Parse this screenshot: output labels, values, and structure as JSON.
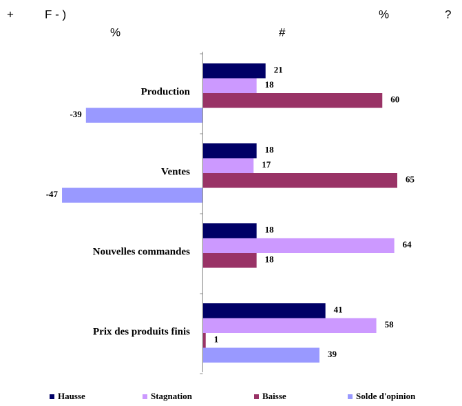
{
  "chart_data": {
    "type": "barh",
    "annotations": [
      "+",
      "F - )",
      "%",
      "?",
      "%",
      "#"
    ],
    "categories": [
      "Production",
      "Ventes",
      "Nouvelles commandes",
      "Prix des produits finis"
    ],
    "series": [
      {
        "name": "Hausse",
        "color": "#000066",
        "values": [
          21,
          18,
          18,
          41
        ]
      },
      {
        "name": "Stagnation",
        "color": "#cc99ff",
        "values": [
          18,
          17,
          64,
          58
        ]
      },
      {
        "name": "Baisse",
        "color": "#993366",
        "values": [
          60,
          65,
          18,
          1
        ]
      },
      {
        "name": "Solde d'opinion",
        "color": "#9999ff",
        "values": [
          -39,
          -47,
          null,
          39
        ]
      }
    ],
    "xlim": [
      -50,
      65
    ],
    "legend": "bottom"
  }
}
